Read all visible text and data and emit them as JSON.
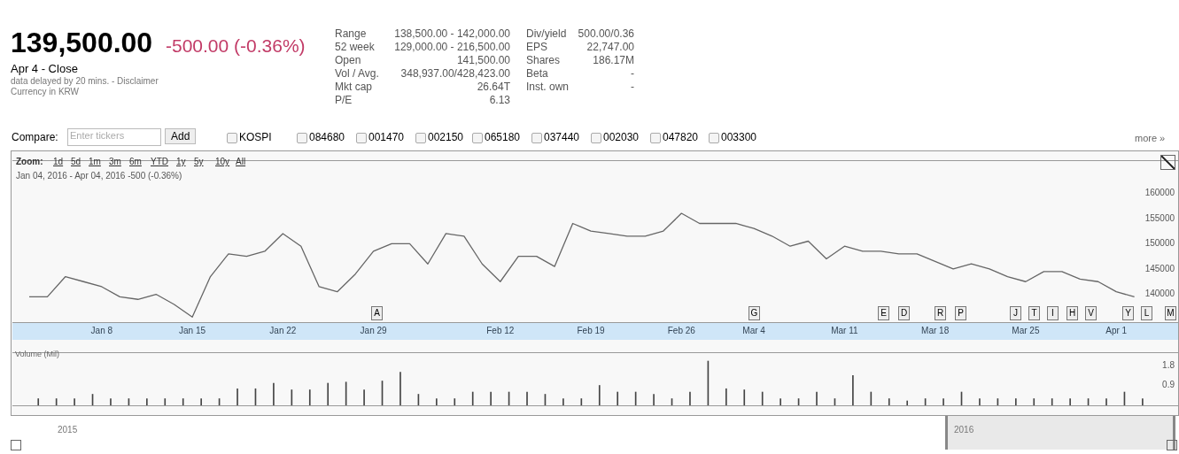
{
  "chart_data": [
    {
      "type": "other",
      "title": "139,500.00",
      "subtitle": "-500.00 (-0.36%)",
      "annotations": [
        "Apr 4 - Close",
        "data delayed by 20 mins. - Disclaimer",
        "Currency in KRW",
        "Range",
        "138,500.00 - 142,000.00",
        "52 week",
        "129,000.00 - 216,500.00",
        "Open",
        "141,500.00",
        "Vol / Avg.",
        "348,937.00/428,423.00",
        "Mkt cap",
        "26.64T",
        "P/E",
        "6.13",
        "Div/yield",
        "500.00/0.36",
        "EPS",
        "22,747.00",
        "Shares",
        "186.17M",
        "Beta",
        "-",
        "Inst. own",
        "-",
        "Compare:",
        "Enter tickers",
        "Add",
        "KOSPI",
        "084680",
        "001470",
        "002150",
        "065180",
        "037440",
        "002030",
        "047820",
        "003300",
        "more »"
      ]
    },
    {
      "type": "line",
      "color": "#666666",
      "ylim": [
        134500,
        166500
      ],
      "yticks": [
        140000,
        145000,
        150000,
        155000,
        160000
      ],
      "categories": [
        null,
        null,
        null,
        null,
        "Jan 8",
        null,
        null,
        null,
        null,
        "Jan 15",
        null,
        null,
        null,
        null,
        "Jan 22",
        null,
        null,
        null,
        null,
        "Jan 29",
        null,
        null,
        null,
        null,
        null,
        null,
        "Feb 12",
        null,
        null,
        null,
        null,
        "Feb 19",
        null,
        null,
        null,
        null,
        "Feb 26",
        null,
        null,
        null,
        "Mar 4",
        null,
        null,
        null,
        null,
        "Mar 11",
        null,
        null,
        null,
        null,
        "Mar 18",
        null,
        null,
        null,
        null,
        "Mar 25",
        null,
        null,
        null,
        null,
        "Apr 1",
        null
      ],
      "values": [
        139500,
        139500,
        143500,
        142500,
        141500,
        139500,
        139000,
        140000,
        138000,
        135500,
        143500,
        148000,
        147500,
        148500,
        152000,
        149500,
        141500,
        140500,
        144000,
        148500,
        150000,
        150000,
        146000,
        152000,
        151500,
        146000,
        142500,
        147500,
        147500,
        145500,
        154000,
        152500,
        152000,
        151500,
        151500,
        152500,
        156000,
        154000,
        154000,
        154000,
        153000,
        151500,
        149500,
        150500,
        147000,
        149500,
        148500,
        148500,
        148000,
        148000,
        146500,
        145000,
        146000,
        145000,
        143500,
        142500,
        144500,
        144500,
        143000,
        142500,
        140500,
        139500
      ],
      "annotations": [
        "Zoom:",
        "1d",
        "5d",
        "1m",
        "3m",
        "6m",
        "YTD",
        "1y",
        "5y",
        "10y",
        "All",
        "Jan 04, 2016 - Apr 04, 2016 -500 (-0.36%)",
        "A",
        "G",
        "E",
        "D",
        "R",
        "P",
        "J",
        "T",
        "I",
        "H",
        "V",
        "Y",
        "L",
        "M"
      ]
    },
    {
      "type": "bar",
      "color": "#444444",
      "ylim": [
        0,
        2.4
      ],
      "yticks": [
        0.9,
        1.8
      ],
      "ylabel": "Volume (Mil)",
      "categories": [
        null,
        null,
        null,
        null,
        null,
        null,
        null,
        null,
        null,
        null,
        null,
        null,
        null,
        null,
        null,
        null,
        null,
        null,
        null,
        null,
        null,
        null,
        null,
        null,
        null,
        null,
        null,
        null,
        null,
        null,
        null,
        null,
        null,
        null,
        null,
        null,
        null,
        null,
        null,
        null,
        null,
        null,
        null,
        null,
        null,
        null,
        null,
        null,
        null,
        null,
        null,
        null,
        null,
        null,
        null,
        null,
        null,
        null,
        null,
        null,
        null,
        null
      ],
      "values": [
        0.3,
        0.3,
        0.3,
        0.5,
        0.3,
        0.3,
        0.3,
        0.3,
        0.3,
        0.3,
        0.3,
        0.75,
        0.75,
        1.0,
        0.7,
        0.7,
        1.0,
        1.05,
        0.7,
        1.1,
        1.5,
        0.5,
        0.3,
        0.3,
        0.6,
        0.6,
        0.6,
        0.6,
        0.5,
        0.3,
        0.3,
        0.9,
        0.6,
        0.6,
        0.5,
        0.3,
        0.6,
        2.0,
        0.75,
        0.7,
        0.6,
        0.3,
        0.3,
        0.6,
        0.3,
        1.35,
        0.6,
        0.3,
        0.2,
        0.3,
        0.3,
        0.6,
        0.3,
        0.3,
        0.3,
        0.3,
        0.3,
        0.3,
        0.3,
        0.3,
        0.6,
        0.3
      ],
      "annotations": [
        "2015",
        "2016"
      ]
    }
  ]
}
